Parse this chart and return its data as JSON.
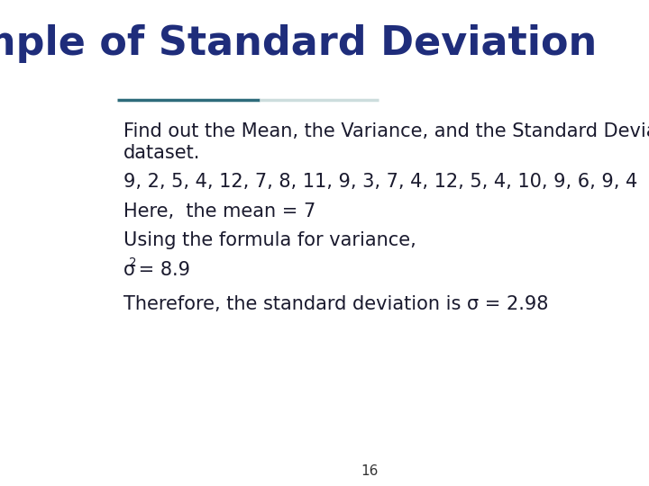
{
  "title": "Example of Standard Deviation",
  "title_color": "#1F2D7B",
  "title_fontsize": 32,
  "title_fontweight": "bold",
  "background_color": "#ffffff",
  "separator_color_left": "#2E6B7B",
  "separator_color_right": "#ccdddd",
  "line1": "Find out the Mean, the Variance, and the Standard Deviation of the following",
  "line2": "dataset.",
  "line3": "9, 2, 5, 4, 12, 7, 8, 11, 9, 3, 7, 4, 12, 5, 4, 10, 9, 6, 9, 4",
  "line4": "Here,  the mean = 7",
  "line5": "Using the formula for variance,",
  "line6a": "σ",
  "line6b": "2",
  "line6c": " = 8.9",
  "line7a": "Therefore, the standard deviation is σ",
  "line7b": " = 2.98",
  "body_fontsize": 15,
  "body_color": "#1a1a2e",
  "page_number": "16",
  "page_number_fontsize": 11,
  "page_number_color": "#333333"
}
